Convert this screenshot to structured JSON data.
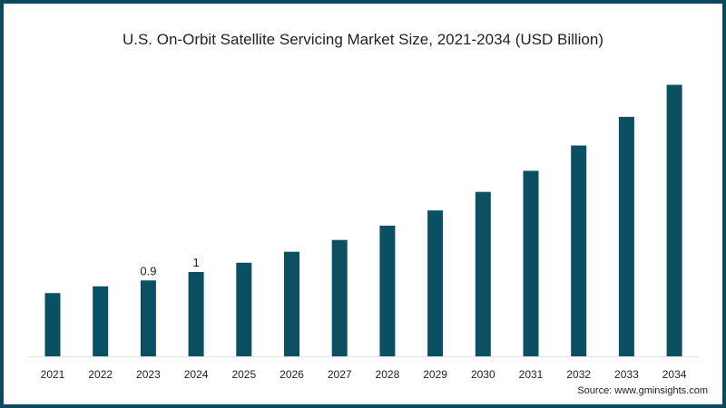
{
  "chart_data": {
    "type": "bar",
    "title": "U.S. On-Orbit Satellite Servicing Market Size, 2021-2034 (USD Billion)",
    "xlabel": "",
    "ylabel": "",
    "categories": [
      "2021",
      "2022",
      "2023",
      "2024",
      "2025",
      "2026",
      "2027",
      "2028",
      "2029",
      "2030",
      "2031",
      "2032",
      "2033",
      "2034"
    ],
    "values": [
      0.75,
      0.83,
      0.9,
      1.0,
      1.11,
      1.24,
      1.38,
      1.55,
      1.73,
      1.95,
      2.2,
      2.5,
      2.84,
      3.22
    ],
    "data_labels": {
      "2023": "0.9",
      "2024": "1"
    },
    "ylim": [
      0,
      3.3
    ],
    "grid": false,
    "bar_color": "#0b4f63",
    "source": "Source: www.gminsights.com"
  }
}
